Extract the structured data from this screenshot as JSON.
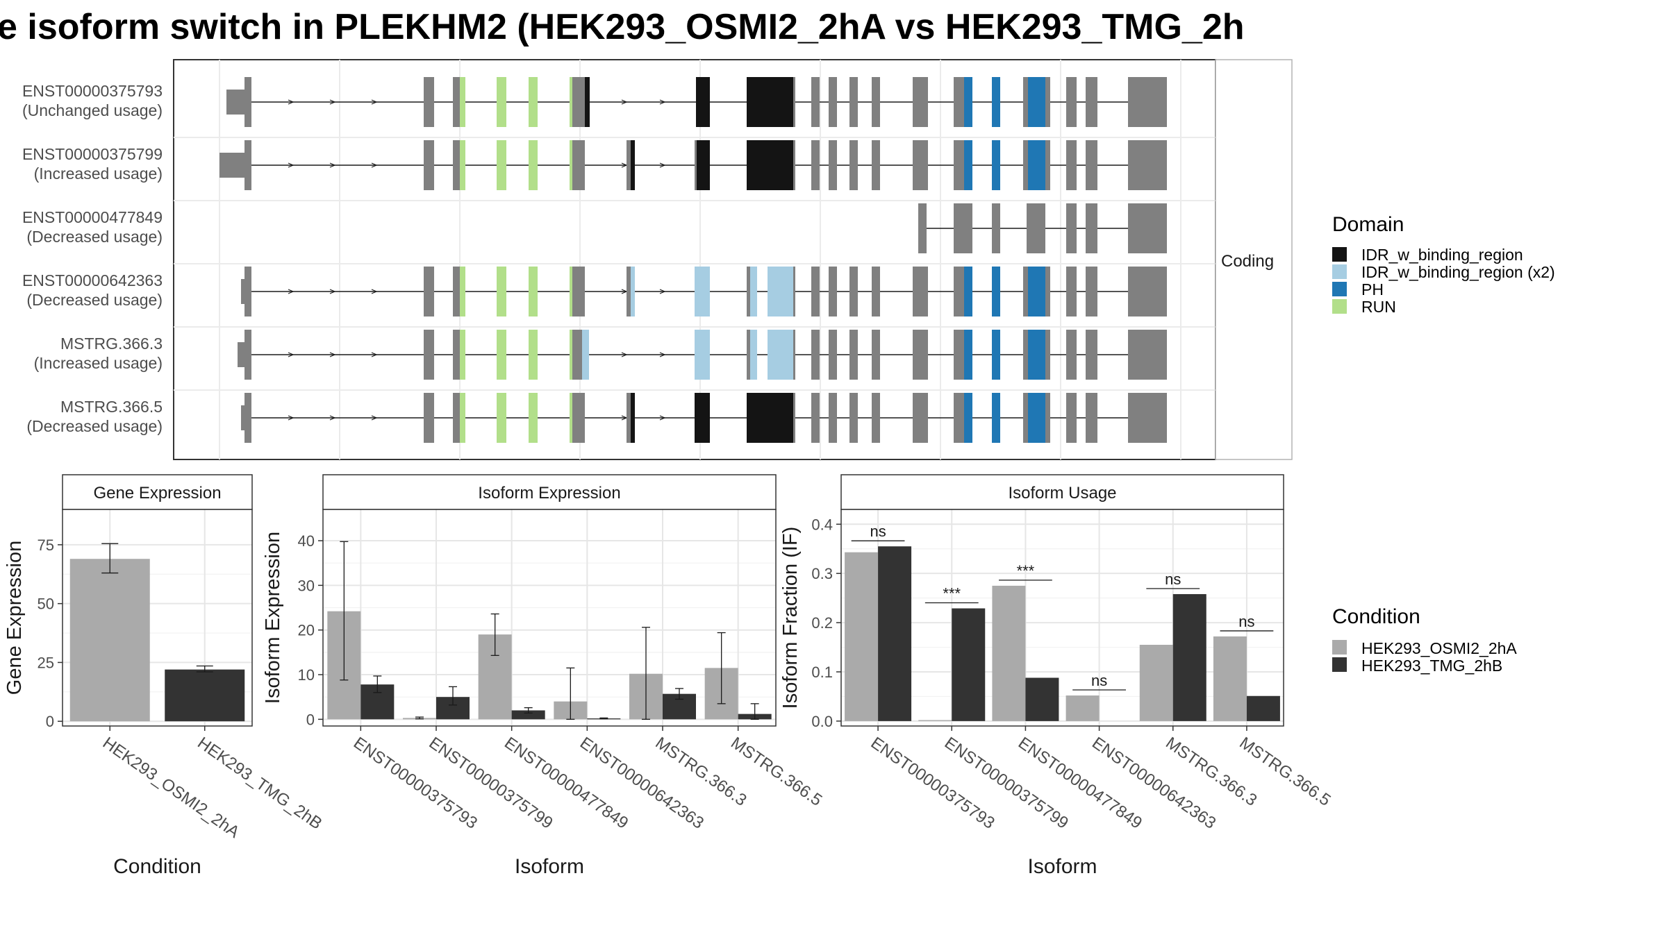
{
  "title": "e isoform switch in PLEKHM2 (HEK293_OSMI2_2hA vs HEK293_TMG_2h",
  "colors": {
    "exon": "#808080",
    "IDR_w_binding_region": "#141414",
    "IDR_w_binding_region (x2)": "#a6cde2",
    "PH": "#1f77b4",
    "RUN": "#b2df8a",
    "cond_a": "#aaaaaa",
    "cond_b": "#333333"
  },
  "structure": {
    "strip_label": "Coding",
    "transcripts": [
      {
        "id": "ENST00000375793",
        "usage": "(Unchanged usage)"
      },
      {
        "id": "ENST00000375799",
        "usage": "(Increased usage)"
      },
      {
        "id": "ENST00000477849",
        "usage": "(Decreased usage)"
      },
      {
        "id": "ENST00000642363",
        "usage": "(Decreased usage)"
      },
      {
        "id": "MSTRG.366.3",
        "usage": "(Increased usage)"
      },
      {
        "id": "MSTRG.366.5",
        "usage": "(Decreased usage)"
      }
    ]
  },
  "legend_domain": {
    "title": "Domain",
    "items": [
      "IDR_w_binding_region",
      "IDR_w_binding_region (x2)",
      "PH",
      "RUN"
    ]
  },
  "legend_condition": {
    "title": "Condition",
    "items": [
      "HEK293_OSMI2_2hA",
      "HEK293_TMG_2hB"
    ]
  },
  "chart_data": [
    {
      "type": "bar",
      "title": "Gene Expression",
      "xlabel": "Condition",
      "ylabel": "Gene Expression",
      "categories": [
        "HEK293_OSMI2_2hA",
        "HEK293_TMG_2hB"
      ],
      "values": [
        69,
        22
      ],
      "error_low": [
        63,
        21
      ],
      "error_high": [
        75.5,
        23.5
      ],
      "ylim": [
        -2,
        90
      ],
      "yticks": [
        0,
        25,
        50,
        75
      ]
    },
    {
      "type": "bar",
      "title": "Isoform Expression",
      "xlabel": "Isoform",
      "ylabel": "Isoform Expression",
      "categories": [
        "ENST00000375793",
        "ENST00000375799",
        "ENST00000477849",
        "ENST00000642363",
        "MSTRG.366.3",
        "MSTRG.366.5"
      ],
      "series": [
        {
          "name": "HEK293_OSMI2_2hA",
          "values": [
            24.2,
            0.3,
            19,
            4,
            10.2,
            11.5
          ],
          "error_low": [
            8.8,
            0.1,
            14.3,
            0,
            0,
            3.5
          ],
          "error_high": [
            39.8,
            0.5,
            23.6,
            11.5,
            20.6,
            19.4
          ]
        },
        {
          "name": "HEK293_TMG_2hB",
          "values": [
            7.8,
            5,
            2,
            0.2,
            5.7,
            1.2
          ],
          "error_low": [
            6,
            3.2,
            1.4,
            0.1,
            4.5,
            0
          ],
          "error_high": [
            9.7,
            7.3,
            2.6,
            0.3,
            6.9,
            3.5
          ]
        }
      ],
      "ylim": [
        -1.5,
        47
      ],
      "yticks": [
        0,
        10,
        20,
        30,
        40
      ]
    },
    {
      "type": "bar",
      "title": "Isoform Usage",
      "xlabel": "Isoform",
      "ylabel": "Isoform Fraction (IF)",
      "categories": [
        "ENST00000375793",
        "ENST00000375799",
        "ENST00000477849",
        "ENST00000642363",
        "MSTRG.366.3",
        "MSTRG.366.5"
      ],
      "series": [
        {
          "name": "HEK293_OSMI2_2hA",
          "values": [
            0.343,
            0.002,
            0.275,
            0.052,
            0.155,
            0.172
          ]
        },
        {
          "name": "HEK293_TMG_2hB",
          "values": [
            0.355,
            0.229,
            0.088,
            0.0,
            0.258,
            0.051
          ]
        }
      ],
      "significance": [
        "ns",
        "***",
        "***",
        "ns",
        "ns",
        "ns"
      ],
      "ylim": [
        -0.01,
        0.43
      ],
      "yticks": [
        0.0,
        0.1,
        0.2,
        0.3,
        0.4
      ]
    }
  ]
}
